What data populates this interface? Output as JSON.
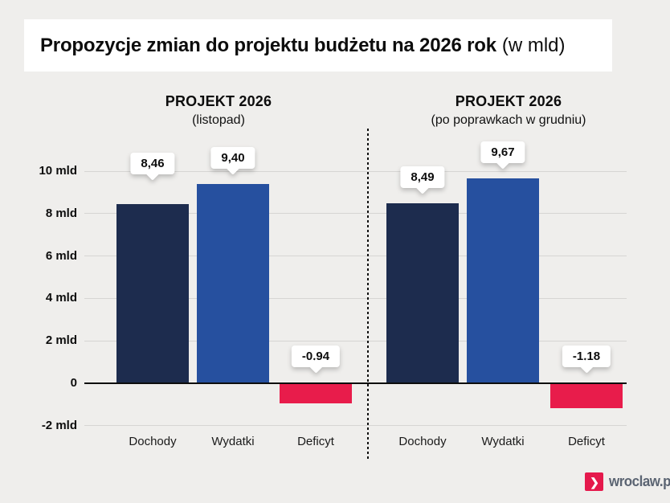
{
  "title": {
    "main": "Propozycje zmian do projektu budżetu na 2026 rok",
    "suffix": "(w mld)"
  },
  "footer": {
    "logo_text": "wroclaw.pl",
    "chevron": "❯"
  },
  "colors": {
    "background": "#efeeec",
    "bar_dochody": "#1d2c4e",
    "bar_wydatki": "#26509f",
    "bar_deficyt": "#e81c4b",
    "gridline": "#d6d5d3",
    "zero_line": "#0d0d0d",
    "logo_red": "#e5194c"
  },
  "chart_data": {
    "type": "bar",
    "title": "Propozycje zmian do projektu budżetu na 2026 rok (w mld)",
    "unit": "mld",
    "xlabel": "",
    "ylabel": "",
    "ylim": [
      -2,
      10
    ],
    "grid": true,
    "legend": "none",
    "y_ticks": [
      {
        "value": 10,
        "label": "10 mld"
      },
      {
        "value": 8,
        "label": "8 mld"
      },
      {
        "value": 6,
        "label": "6 mld"
      },
      {
        "value": 4,
        "label": "4 mld"
      },
      {
        "value": 2,
        "label": "2 mld"
      },
      {
        "value": 0,
        "label": "0"
      },
      {
        "value": -2,
        "label": "-2 mld"
      }
    ],
    "categories": [
      "Dochody",
      "Wydatki",
      "Deficyt"
    ],
    "bar_colors": [
      "#1d2c4e",
      "#26509f",
      "#e81c4b"
    ],
    "panels": [
      {
        "title": "PROJEKT 2026",
        "subtitle": "(listopad)",
        "values": [
          8.46,
          9.4,
          -0.94
        ],
        "value_labels": [
          "8,46",
          "9,40",
          "-0,94"
        ]
      },
      {
        "title": "PROJEKT 2026",
        "subtitle": "(po poprawkach w grudniu)",
        "values": [
          8.49,
          9.67,
          -1.18
        ],
        "value_labels": [
          "8,49",
          "9,67",
          "-1,18"
        ]
      }
    ]
  }
}
